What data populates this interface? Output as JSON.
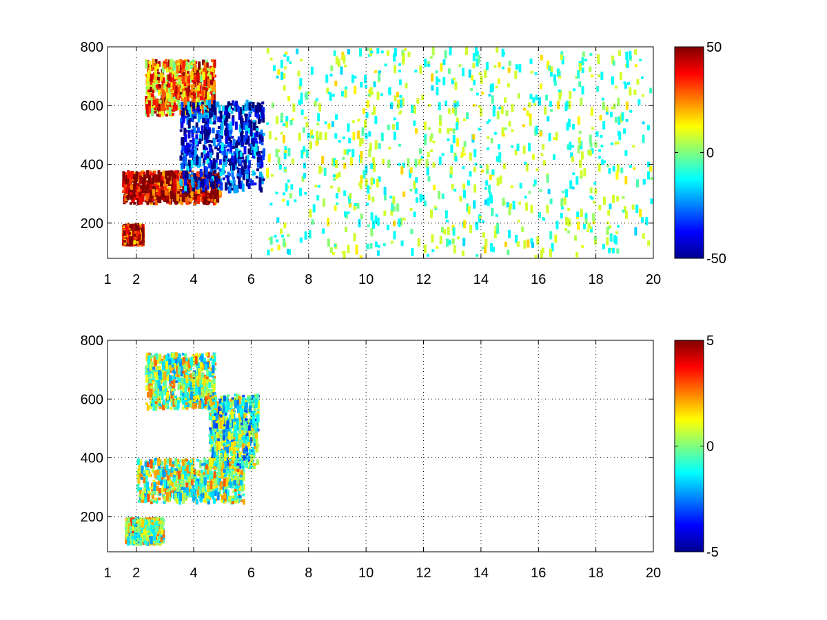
{
  "chart_data": [
    {
      "type": "heatmap",
      "title": "",
      "xlabel": "",
      "ylabel": "",
      "xlim": [
        1,
        20
      ],
      "ylim": [
        80,
        800
      ],
      "x_ticks": [
        1,
        2,
        4,
        6,
        8,
        10,
        12,
        14,
        16,
        18,
        20
      ],
      "y_ticks": [
        200,
        400,
        600,
        800
      ],
      "grid": true,
      "colorbar": {
        "min": -50,
        "max": 50,
        "ticks": [
          -50,
          0,
          50
        ],
        "colormap": "jet"
      },
      "features": [
        {
          "name": "lower warm band",
          "x": [
            1.5,
            5.0
          ],
          "y": [
            260,
            380
          ],
          "value": 45
        },
        {
          "name": "upper warm band",
          "x": [
            2.3,
            4.8
          ],
          "y": [
            560,
            760
          ],
          "value": 25
        },
        {
          "name": "cold band",
          "x": [
            3.5,
            6.5
          ],
          "y": [
            300,
            620
          ],
          "value": -40
        },
        {
          "name": "low-x warm patch",
          "x": [
            1.5,
            2.3
          ],
          "y": [
            120,
            200
          ],
          "value": 40
        },
        {
          "name": "scattered pixels",
          "x": [
            6.5,
            20
          ],
          "y": [
            80,
            800
          ],
          "value": 0
        }
      ]
    },
    {
      "type": "heatmap",
      "title": "",
      "xlabel": "",
      "ylabel": "",
      "xlim": [
        1,
        20
      ],
      "ylim": [
        80,
        800
      ],
      "x_ticks": [
        1,
        2,
        4,
        6,
        8,
        10,
        12,
        14,
        16,
        18,
        20
      ],
      "y_ticks": [
        200,
        400,
        600,
        800
      ],
      "grid": true,
      "colorbar": {
        "min": -5,
        "max": 5,
        "ticks": [
          -5,
          0,
          5
        ],
        "colormap": "jet"
      },
      "features": [
        {
          "name": "lower band",
          "x": [
            2.0,
            5.8
          ],
          "y": [
            240,
            400
          ],
          "value": 0.3
        },
        {
          "name": "upper band",
          "x": [
            2.3,
            4.8
          ],
          "y": [
            560,
            760
          ],
          "value": 0.2
        },
        {
          "name": "right column",
          "x": [
            4.5,
            6.3
          ],
          "y": [
            360,
            620
          ],
          "value": -0.5
        },
        {
          "name": "low-x patch",
          "x": [
            1.6,
            3.0
          ],
          "y": [
            100,
            200
          ],
          "value": 0.5
        }
      ]
    }
  ]
}
